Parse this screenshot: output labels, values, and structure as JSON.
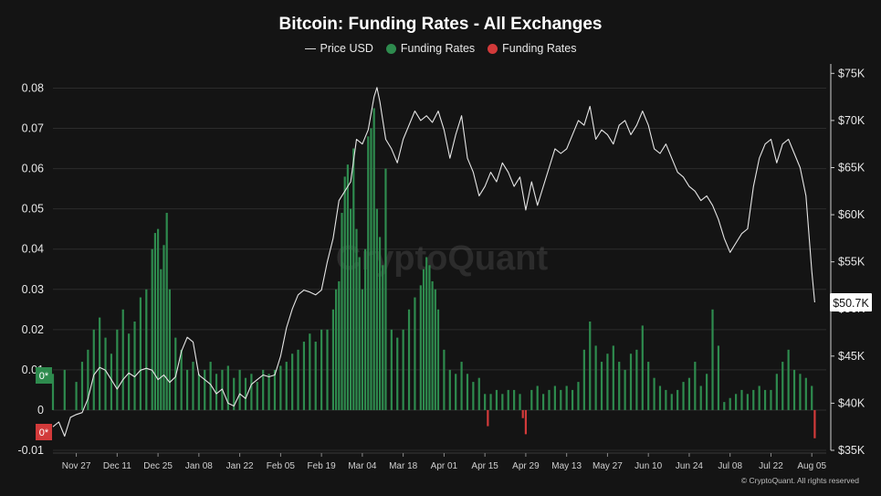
{
  "chart_data": {
    "type": "bar",
    "title": "Bitcoin: Funding Rates - All Exchanges",
    "legend": [
      {
        "label": "Price USD",
        "color": "#d9d9d9",
        "kind": "line"
      },
      {
        "label": "Funding Rates",
        "color": "#2e8b4e",
        "kind": "dot"
      },
      {
        "label": "Funding Rates",
        "color": "#d23a3a",
        "kind": "dot"
      }
    ],
    "left_axis": {
      "ylim": [
        -0.01,
        0.086
      ],
      "ticks": [
        -0.01,
        0,
        0.01,
        0.02,
        0.03,
        0.04,
        0.05,
        0.06,
        0.07,
        0.08
      ],
      "tick_labels": [
        "-0.01",
        "0",
        "0.01",
        "0.02",
        "0.03",
        "0.04",
        "0.05",
        "0.06",
        "0.07",
        "0.08"
      ]
    },
    "right_axis": {
      "ylim": [
        35000,
        76000
      ],
      "ticks": [
        35000,
        40000,
        45000,
        50000,
        55000,
        60000,
        65000,
        70000,
        75000
      ],
      "tick_labels": [
        "$35K",
        "$40K",
        "$45K",
        "$50K",
        "$55K",
        "$60K",
        "$65K",
        "$70K",
        "$75K"
      ]
    },
    "x_range": [
      0,
      264
    ],
    "x_ticks": [
      {
        "day": 8,
        "label": "Nov 27"
      },
      {
        "day": 22,
        "label": "Dec 11"
      },
      {
        "day": 36,
        "label": "Dec 25"
      },
      {
        "day": 50,
        "label": "Jan 08"
      },
      {
        "day": 64,
        "label": "Jan 22"
      },
      {
        "day": 78,
        "label": "Feb 05"
      },
      {
        "day": 92,
        "label": "Feb 19"
      },
      {
        "day": 106,
        "label": "Mar 04"
      },
      {
        "day": 120,
        "label": "Mar 18"
      },
      {
        "day": 134,
        "label": "Apr 01"
      },
      {
        "day": 148,
        "label": "Apr 15"
      },
      {
        "day": 162,
        "label": "Apr 29"
      },
      {
        "day": 176,
        "label": "May 13"
      },
      {
        "day": 190,
        "label": "May 27"
      },
      {
        "day": 204,
        "label": "Jun 10"
      },
      {
        "day": 218,
        "label": "Jun 24"
      },
      {
        "day": 232,
        "label": "Jul 08"
      },
      {
        "day": 246,
        "label": "Jul 22"
      },
      {
        "day": 260,
        "label": "Aug 05"
      }
    ],
    "funding_rates": [
      [
        0,
        0.009
      ],
      [
        4,
        0.01
      ],
      [
        8,
        0.007
      ],
      [
        10,
        0.012
      ],
      [
        12,
        0.015
      ],
      [
        14,
        0.02
      ],
      [
        16,
        0.023
      ],
      [
        18,
        0.018
      ],
      [
        20,
        0.014
      ],
      [
        22,
        0.02
      ],
      [
        24,
        0.025
      ],
      [
        26,
        0.019
      ],
      [
        28,
        0.022
      ],
      [
        30,
        0.028
      ],
      [
        32,
        0.03
      ],
      [
        34,
        0.04
      ],
      [
        35,
        0.044
      ],
      [
        36,
        0.045
      ],
      [
        37,
        0.035
      ],
      [
        38,
        0.041
      ],
      [
        39,
        0.049
      ],
      [
        40,
        0.03
      ],
      [
        42,
        0.018
      ],
      [
        44,
        0.015
      ],
      [
        46,
        0.01
      ],
      [
        48,
        0.012
      ],
      [
        50,
        0.009
      ],
      [
        52,
        0.01
      ],
      [
        54,
        0.012
      ],
      [
        56,
        0.009
      ],
      [
        58,
        0.01
      ],
      [
        60,
        0.011
      ],
      [
        62,
        0.008
      ],
      [
        64,
        0.01
      ],
      [
        66,
        0.008
      ],
      [
        68,
        0.009
      ],
      [
        70,
        0.007
      ],
      [
        72,
        0.01
      ],
      [
        74,
        0.009
      ],
      [
        76,
        0.01
      ],
      [
        78,
        0.011
      ],
      [
        80,
        0.012
      ],
      [
        82,
        0.014
      ],
      [
        84,
        0.015
      ],
      [
        86,
        0.017
      ],
      [
        88,
        0.019
      ],
      [
        90,
        0.017
      ],
      [
        92,
        0.02
      ],
      [
        94,
        0.02
      ],
      [
        96,
        0.025
      ],
      [
        97,
        0.03
      ],
      [
        98,
        0.032
      ],
      [
        99,
        0.049
      ],
      [
        100,
        0.058
      ],
      [
        101,
        0.061
      ],
      [
        102,
        0.05
      ],
      [
        103,
        0.065
      ],
      [
        104,
        0.045
      ],
      [
        105,
        0.038
      ],
      [
        106,
        0.03
      ],
      [
        107,
        0.04
      ],
      [
        108,
        0.068
      ],
      [
        109,
        0.07
      ],
      [
        110,
        0.075
      ],
      [
        111,
        0.05
      ],
      [
        112,
        0.043
      ],
      [
        113,
        0.036
      ],
      [
        114,
        0.06
      ],
      [
        116,
        0.02
      ],
      [
        118,
        0.018
      ],
      [
        120,
        0.02
      ],
      [
        122,
        0.025
      ],
      [
        124,
        0.028
      ],
      [
        126,
        0.031
      ],
      [
        127,
        0.035
      ],
      [
        128,
        0.038
      ],
      [
        129,
        0.036
      ],
      [
        130,
        0.032
      ],
      [
        131,
        0.03
      ],
      [
        132,
        0.025
      ],
      [
        134,
        0.015
      ],
      [
        136,
        0.01
      ],
      [
        138,
        0.009
      ],
      [
        140,
        0.012
      ],
      [
        142,
        0.009
      ],
      [
        144,
        0.007
      ],
      [
        146,
        0.008
      ],
      [
        148,
        0.004
      ],
      [
        149,
        -0.004
      ],
      [
        150,
        0.004
      ],
      [
        152,
        0.005
      ],
      [
        154,
        0.004
      ],
      [
        156,
        0.005
      ],
      [
        158,
        0.005
      ],
      [
        160,
        0.004
      ],
      [
        161,
        -0.002
      ],
      [
        162,
        -0.006
      ],
      [
        164,
        0.005
      ],
      [
        166,
        0.006
      ],
      [
        168,
        0.004
      ],
      [
        170,
        0.005
      ],
      [
        172,
        0.006
      ],
      [
        174,
        0.005
      ],
      [
        176,
        0.006
      ],
      [
        178,
        0.005
      ],
      [
        180,
        0.007
      ],
      [
        182,
        0.015
      ],
      [
        184,
        0.022
      ],
      [
        186,
        0.016
      ],
      [
        188,
        0.012
      ],
      [
        190,
        0.014
      ],
      [
        192,
        0.016
      ],
      [
        194,
        0.012
      ],
      [
        196,
        0.01
      ],
      [
        198,
        0.014
      ],
      [
        200,
        0.015
      ],
      [
        202,
        0.021
      ],
      [
        204,
        0.012
      ],
      [
        206,
        0.008
      ],
      [
        208,
        0.006
      ],
      [
        210,
        0.005
      ],
      [
        212,
        0.004
      ],
      [
        214,
        0.005
      ],
      [
        216,
        0.007
      ],
      [
        218,
        0.008
      ],
      [
        220,
        0.012
      ],
      [
        222,
        0.006
      ],
      [
        224,
        0.009
      ],
      [
        226,
        0.025
      ],
      [
        228,
        0.016
      ],
      [
        230,
        0.002
      ],
      [
        232,
        0.003
      ],
      [
        234,
        0.004
      ],
      [
        236,
        0.005
      ],
      [
        238,
        0.004
      ],
      [
        240,
        0.005
      ],
      [
        242,
        0.006
      ],
      [
        244,
        0.005
      ],
      [
        246,
        0.005
      ],
      [
        248,
        0.009
      ],
      [
        250,
        0.012
      ],
      [
        252,
        0.015
      ],
      [
        254,
        0.01
      ],
      [
        256,
        0.009
      ],
      [
        258,
        0.008
      ],
      [
        260,
        0.006
      ],
      [
        261,
        -0.007
      ]
    ],
    "price_usd": [
      [
        0,
        37500
      ],
      [
        2,
        38000
      ],
      [
        4,
        36500
      ],
      [
        6,
        38500
      ],
      [
        8,
        38800
      ],
      [
        10,
        39000
      ],
      [
        12,
        40500
      ],
      [
        14,
        43000
      ],
      [
        16,
        43800
      ],
      [
        18,
        43500
      ],
      [
        20,
        42500
      ],
      [
        22,
        41500
      ],
      [
        24,
        42500
      ],
      [
        26,
        43200
      ],
      [
        28,
        42800
      ],
      [
        30,
        43500
      ],
      [
        32,
        43700
      ],
      [
        34,
        43500
      ],
      [
        36,
        42500
      ],
      [
        38,
        43000
      ],
      [
        40,
        42200
      ],
      [
        42,
        42800
      ],
      [
        44,
        45500
      ],
      [
        46,
        47000
      ],
      [
        48,
        46500
      ],
      [
        50,
        43000
      ],
      [
        52,
        42500
      ],
      [
        54,
        42000
      ],
      [
        56,
        41000
      ],
      [
        58,
        41500
      ],
      [
        60,
        40000
      ],
      [
        62,
        39700
      ],
      [
        64,
        41000
      ],
      [
        66,
        40500
      ],
      [
        68,
        42000
      ],
      [
        70,
        42500
      ],
      [
        72,
        43000
      ],
      [
        74,
        42800
      ],
      [
        76,
        43000
      ],
      [
        78,
        45000
      ],
      [
        80,
        48000
      ],
      [
        82,
        50000
      ],
      [
        84,
        51500
      ],
      [
        86,
        52000
      ],
      [
        88,
        51800
      ],
      [
        90,
        51500
      ],
      [
        92,
        52000
      ],
      [
        94,
        55000
      ],
      [
        96,
        57500
      ],
      [
        98,
        61500
      ],
      [
        100,
        62500
      ],
      [
        102,
        63500
      ],
      [
        104,
        68000
      ],
      [
        106,
        67500
      ],
      [
        108,
        69000
      ],
      [
        110,
        72500
      ],
      [
        111,
        73500
      ],
      [
        112,
        72000
      ],
      [
        114,
        68000
      ],
      [
        116,
        67000
      ],
      [
        118,
        65500
      ],
      [
        120,
        68000
      ],
      [
        122,
        69500
      ],
      [
        124,
        71000
      ],
      [
        126,
        70000
      ],
      [
        128,
        70500
      ],
      [
        130,
        69800
      ],
      [
        132,
        71000
      ],
      [
        134,
        69000
      ],
      [
        136,
        66000
      ],
      [
        138,
        68500
      ],
      [
        140,
        70500
      ],
      [
        142,
        66000
      ],
      [
        144,
        64500
      ],
      [
        146,
        62000
      ],
      [
        148,
        63000
      ],
      [
        150,
        64500
      ],
      [
        152,
        63500
      ],
      [
        154,
        65500
      ],
      [
        156,
        64500
      ],
      [
        158,
        63000
      ],
      [
        160,
        64000
      ],
      [
        162,
        60500
      ],
      [
        164,
        63500
      ],
      [
        166,
        61000
      ],
      [
        168,
        63000
      ],
      [
        170,
        65000
      ],
      [
        172,
        67000
      ],
      [
        174,
        66500
      ],
      [
        176,
        67000
      ],
      [
        178,
        68500
      ],
      [
        180,
        70000
      ],
      [
        182,
        69500
      ],
      [
        184,
        71500
      ],
      [
        186,
        68000
      ],
      [
        188,
        69000
      ],
      [
        190,
        68500
      ],
      [
        192,
        67500
      ],
      [
        194,
        69500
      ],
      [
        196,
        70000
      ],
      [
        198,
        68500
      ],
      [
        200,
        69500
      ],
      [
        202,
        71000
      ],
      [
        204,
        69500
      ],
      [
        206,
        67000
      ],
      [
        208,
        66500
      ],
      [
        210,
        67500
      ],
      [
        212,
        66000
      ],
      [
        214,
        64500
      ],
      [
        216,
        64000
      ],
      [
        218,
        63000
      ],
      [
        220,
        62500
      ],
      [
        222,
        61500
      ],
      [
        224,
        62000
      ],
      [
        226,
        61000
      ],
      [
        228,
        59500
      ],
      [
        230,
        57500
      ],
      [
        232,
        56000
      ],
      [
        234,
        57000
      ],
      [
        236,
        58000
      ],
      [
        238,
        58500
      ],
      [
        240,
        63000
      ],
      [
        242,
        66000
      ],
      [
        244,
        67500
      ],
      [
        246,
        68000
      ],
      [
        248,
        65500
      ],
      [
        250,
        67500
      ],
      [
        252,
        68000
      ],
      [
        254,
        66500
      ],
      [
        256,
        65000
      ],
      [
        258,
        62000
      ],
      [
        259,
        58000
      ],
      [
        260,
        54000
      ],
      [
        261,
        50700
      ]
    ],
    "last_price_label": "$50.7K",
    "zero_line_badge_top": "0*",
    "zero_line_badge_bottom": "0*",
    "watermark": "CryptoQuant",
    "copyright": "© CryptoQuant. All rights reserved",
    "colors": {
      "background": "#141414",
      "positive_bar": "#2e8b4e",
      "negative_bar": "#d23a3a",
      "price_line": "#e6e6e6",
      "grid": "#2c2c2c"
    }
  }
}
